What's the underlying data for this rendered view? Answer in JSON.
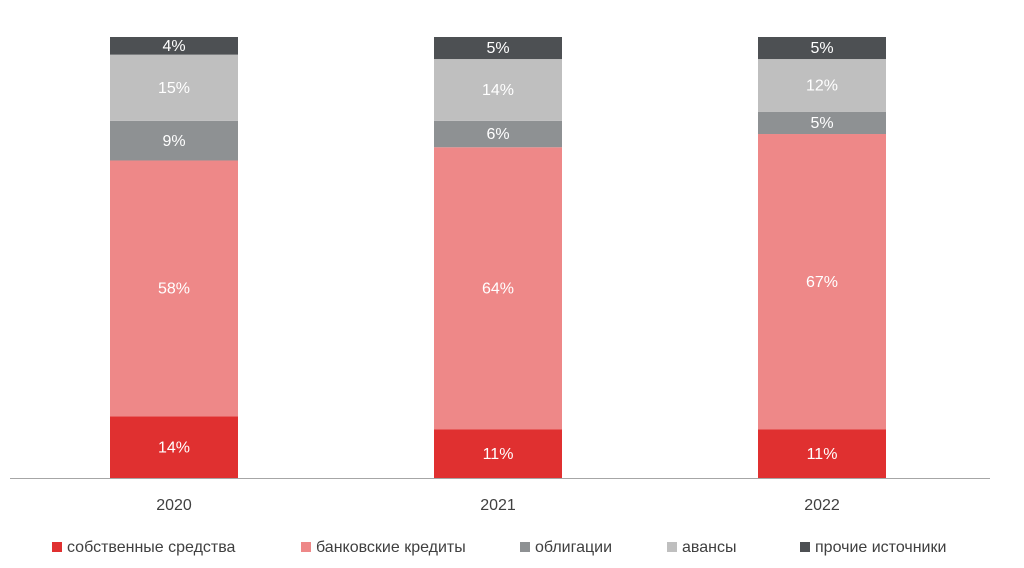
{
  "chart_data": {
    "type": "bar",
    "stacked": true,
    "categories": [
      "2020",
      "2021",
      "2022"
    ],
    "series": [
      {
        "name": "собственные средства",
        "color": "#e03030",
        "values": [
          14,
          11,
          11
        ],
        "labels": [
          "14%",
          "11%",
          "11%"
        ]
      },
      {
        "name": "банковские кредиты",
        "color": "#ee8888",
        "values": [
          58,
          64,
          67
        ],
        "labels": [
          "58%",
          "64%",
          "67%"
        ]
      },
      {
        "name": "облигации",
        "color": "#8e9193",
        "values": [
          9,
          6,
          5
        ],
        "labels": [
          "9%",
          "6%",
          "5%"
        ]
      },
      {
        "name": "авансы",
        "color": "#bfbfbf",
        "values": [
          15,
          14,
          12
        ],
        "labels": [
          "15%",
          "14%",
          "12%"
        ]
      },
      {
        "name": "прочие источники",
        "color": "#4d5053",
        "values": [
          4,
          5,
          5
        ],
        "labels": [
          "4%",
          "5%",
          "5%"
        ]
      }
    ],
    "ylim": [
      0,
      100
    ],
    "grid": false,
    "legend_position": "bottom",
    "title": "",
    "xlabel": "",
    "ylabel": ""
  }
}
